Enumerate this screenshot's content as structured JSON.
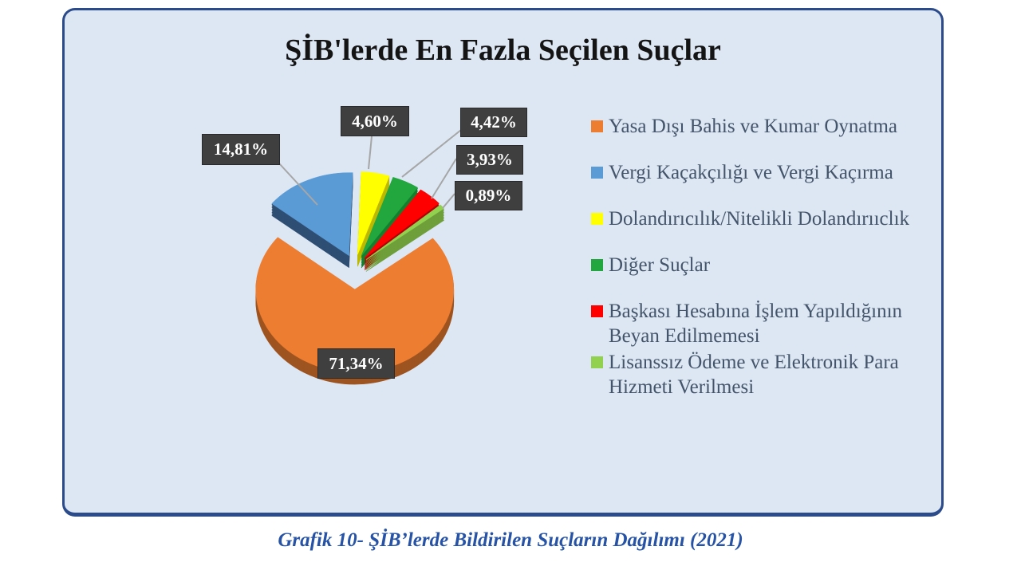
{
  "chart_data": {
    "type": "pie",
    "title": "ŞİB'lerde En Fazla Seçilen Suçlar",
    "style": "3d-exploded-pie",
    "start_angle_deg": 52,
    "value_format": "comma-decimal percent",
    "legend_position": "right",
    "slices": [
      {
        "label": "Yasa Dışı Bahis ve Kumar Oynatma",
        "value": 71.34,
        "display": "71,34%",
        "color": "#ED7D31",
        "side_color": "#9E5420"
      },
      {
        "label": "Vergi Kaçakçılığı ve Vergi Kaçırma",
        "value": 14.81,
        "display": "14,81%",
        "color": "#5B9BD5",
        "side_color": "#2F4E73"
      },
      {
        "label": "Dolandırıcılık/Nitelikli Dolandırııclık",
        "value": 4.6,
        "display": "4,60%",
        "color": "#FFFF00",
        "side_color": "#BDB800"
      },
      {
        "label": "Diğer Suçlar",
        "value": 4.42,
        "display": "4,42%",
        "color": "#22A63E",
        "side_color": "#14802E"
      },
      {
        "label": "Başkası Hesabına İşlem Yapıldığının Beyan Edilmemesi",
        "value": 3.93,
        "display": "3,93%",
        "color": "#FF0000",
        "side_color": "#B00000"
      },
      {
        "label": "Lisanssız Ödeme ve Elektronik Para Hizmeti Verilmesi",
        "value": 0.89,
        "display": "0,89%",
        "color": "#92D050",
        "side_color": "#6F9F3A"
      }
    ]
  },
  "panel": {
    "background": "#DCE7F3",
    "border_color": "#2C4B8A"
  },
  "label_box": {
    "background": "#3F3F3F",
    "text_color": "#FFFFFF"
  },
  "leader_line_color": "#A6A6A6",
  "caption": "Grafik 10- ŞİB’lerde Bildirilen Suçların Dağılımı (2021)"
}
